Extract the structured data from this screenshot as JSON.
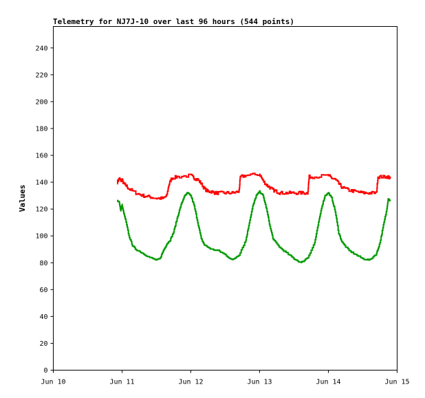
{
  "chart_data": {
    "type": "line",
    "title": "Telemetry for NJ7J-10 over last 96 hours (544 points)",
    "ylabel": "Values",
    "xlabel": "",
    "xlim": [
      0,
      5
    ],
    "ylim": [
      0,
      256
    ],
    "x_ticks": [
      {
        "x": 0,
        "label": "Jun 10"
      },
      {
        "x": 1,
        "label": "Jun 11"
      },
      {
        "x": 2,
        "label": "Jun 12"
      },
      {
        "x": 3,
        "label": "Jun 13"
      },
      {
        "x": 4,
        "label": "Jun 14"
      },
      {
        "x": 5,
        "label": "Jun 15"
      }
    ],
    "y_ticks": [
      0,
      20,
      40,
      60,
      80,
      100,
      120,
      140,
      160,
      180,
      200,
      220,
      240
    ],
    "grid": false,
    "legend": "none",
    "series": [
      {
        "color": "#ff0000",
        "x": [
          0.93,
          0.96,
          0.98,
          1.0,
          1.02,
          1.05,
          1.1,
          1.2,
          1.3,
          1.4,
          1.5,
          1.6,
          1.65,
          1.68,
          1.72,
          1.8,
          2.0,
          2.05,
          2.1,
          2.15,
          2.2,
          2.25,
          2.3,
          2.35,
          2.4,
          2.5,
          2.6,
          2.7,
          2.72,
          2.8,
          3.0,
          3.05,
          3.1,
          3.15,
          3.2,
          3.25,
          3.3,
          3.4,
          3.5,
          3.6,
          3.7,
          3.72,
          3.8,
          4.0,
          4.05,
          4.1,
          4.15,
          4.2,
          4.3,
          4.4,
          4.5,
          4.6,
          4.7,
          4.72,
          4.8,
          4.87,
          4.9
        ],
        "y": [
          140,
          143,
          141,
          142,
          139,
          138,
          135,
          132,
          130,
          129,
          128,
          128,
          130,
          138,
          143,
          144,
          145,
          143,
          142,
          139,
          135,
          133,
          133,
          132,
          132,
          132,
          132,
          133,
          144,
          145,
          146,
          141,
          138,
          136,
          134,
          133,
          132,
          132,
          132,
          132,
          132,
          144,
          144,
          145,
          143,
          142,
          139,
          136,
          134,
          133,
          132,
          132,
          132,
          144,
          144,
          144,
          143
        ]
      },
      {
        "color": "#009900",
        "x": [
          0.93,
          0.96,
          0.98,
          1.0,
          1.02,
          1.05,
          1.1,
          1.15,
          1.2,
          1.3,
          1.4,
          1.5,
          1.55,
          1.6,
          1.65,
          1.7,
          1.75,
          1.8,
          1.85,
          1.9,
          1.95,
          2.0,
          2.05,
          2.1,
          2.15,
          2.2,
          2.3,
          2.4,
          2.5,
          2.6,
          2.7,
          2.8,
          2.85,
          2.9,
          2.95,
          3.0,
          3.05,
          3.1,
          3.15,
          3.2,
          3.3,
          3.4,
          3.5,
          3.6,
          3.7,
          3.8,
          3.85,
          3.9,
          3.95,
          4.0,
          4.05,
          4.1,
          4.15,
          4.2,
          4.3,
          4.4,
          4.5,
          4.6,
          4.7,
          4.75,
          4.8,
          4.85,
          4.87,
          4.9
        ],
        "y": [
          126,
          125,
          119,
          123,
          118,
          112,
          100,
          93,
          90,
          87,
          84,
          82,
          83,
          89,
          94,
          97,
          103,
          113,
          122,
          129,
          132,
          130,
          122,
          110,
          98,
          93,
          90,
          89,
          86,
          82,
          86,
          97,
          110,
          122,
          130,
          133,
          130,
          120,
          107,
          97,
          91,
          87,
          83,
          80,
          84,
          95,
          108,
          121,
          130,
          132,
          128,
          118,
          102,
          95,
          89,
          86,
          83,
          82,
          87,
          95,
          108,
          120,
          128,
          126
        ]
      }
    ]
  }
}
